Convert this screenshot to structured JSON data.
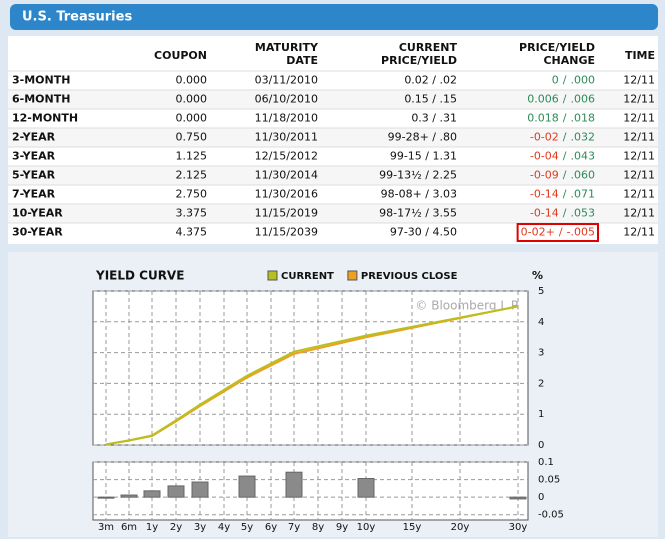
{
  "header": {
    "title": "U.S. Treasuries"
  },
  "table": {
    "columns": [
      [
        "COUPON"
      ],
      [
        "MATURITY",
        "DATE"
      ],
      [
        "CURRENT",
        "PRICE/YIELD"
      ],
      [
        "PRICE/YIELD",
        "CHANGE"
      ],
      [
        "TIME"
      ]
    ],
    "separator": "/",
    "rows": [
      {
        "name": "3-MONTH",
        "coupon": "0.000",
        "maturity": "03/11/2010",
        "current": "0.02 / .02",
        "price_change": "0",
        "yield_change": ".000",
        "price_change_color": "#2e8b57",
        "yield_change_color": "#2e8b57",
        "time": "12/11"
      },
      {
        "name": "6-MONTH",
        "coupon": "0.000",
        "maturity": "06/10/2010",
        "current": "0.15 / .15",
        "price_change": "0.006",
        "yield_change": ".006",
        "price_change_color": "#2e8b57",
        "yield_change_color": "#2e8b57",
        "time": "12/11"
      },
      {
        "name": "12-MONTH",
        "coupon": "0.000",
        "maturity": "11/18/2010",
        "current": "0.3 / .31",
        "price_change": "0.018",
        "yield_change": ".018",
        "price_change_color": "#2e8b57",
        "yield_change_color": "#2e8b57",
        "time": "12/11"
      },
      {
        "name": "2-YEAR",
        "coupon": "0.750",
        "maturity": "11/30/2011",
        "current": "99-28+ / .80",
        "price_change": "-0-02",
        "yield_change": ".032",
        "price_change_color": "#e03a1e",
        "yield_change_color": "#2e8b57",
        "time": "12/11"
      },
      {
        "name": "3-YEAR",
        "coupon": "1.125",
        "maturity": "12/15/2012",
        "current": "99-15 / 1.31",
        "price_change": "-0-04",
        "yield_change": ".043",
        "price_change_color": "#e03a1e",
        "yield_change_color": "#2e8b57",
        "time": "12/11"
      },
      {
        "name": "5-YEAR",
        "coupon": "2.125",
        "maturity": "11/30/2014",
        "current": "99-13½ / 2.25",
        "price_change": "-0-09",
        "yield_change": ".060",
        "price_change_color": "#e03a1e",
        "yield_change_color": "#2e8b57",
        "time": "12/11"
      },
      {
        "name": "7-YEAR",
        "coupon": "2.750",
        "maturity": "11/30/2016",
        "current": "98-08+ / 3.03",
        "price_change": "-0-14",
        "yield_change": ".071",
        "price_change_color": "#e03a1e",
        "yield_change_color": "#2e8b57",
        "time": "12/11"
      },
      {
        "name": "10-YEAR",
        "coupon": "3.375",
        "maturity": "11/15/2019",
        "current": "98-17½ / 3.55",
        "price_change": "-0-14",
        "yield_change": ".053",
        "price_change_color": "#e03a1e",
        "yield_change_color": "#2e8b57",
        "time": "12/11"
      },
      {
        "name": "30-YEAR",
        "coupon": "4.375",
        "maturity": "11/15/2039",
        "current": "97-30 / 4.50",
        "price_change": "0-02+",
        "yield_change": "-.005",
        "price_change_color": "#e03a1e",
        "yield_change_color": "#e03a1e",
        "time": "12/11",
        "highlight": true
      }
    ]
  },
  "chart_data": {
    "type": "line",
    "title": "YIELD CURVE",
    "y_unit_label": "%",
    "watermark": "© Bloomberg L.P.",
    "x": [
      0.25,
      0.5,
      1,
      2,
      3,
      5,
      7,
      10,
      30
    ],
    "xlim": [
      0.25,
      30
    ],
    "xticks": [
      {
        "value": 0.25,
        "label": "3m"
      },
      {
        "value": 0.5,
        "label": "6m"
      },
      {
        "value": 1,
        "label": "1y"
      },
      {
        "value": 2,
        "label": "2y"
      },
      {
        "value": 3,
        "label": "3y"
      },
      {
        "value": 4,
        "label": "4y"
      },
      {
        "value": 5,
        "label": "5y"
      },
      {
        "value": 6,
        "label": "6y"
      },
      {
        "value": 7,
        "label": "7y"
      },
      {
        "value": 8,
        "label": "8y"
      },
      {
        "value": 9,
        "label": "9y"
      },
      {
        "value": 10,
        "label": "10y"
      },
      {
        "value": 15,
        "label": "15y"
      },
      {
        "value": 20,
        "label": "20y"
      },
      {
        "value": 30,
        "label": "30y"
      }
    ],
    "ylim": [
      0,
      5
    ],
    "yticks": [
      0,
      1,
      2,
      3,
      4,
      5
    ],
    "grid": true,
    "series": [
      {
        "name": "PREVIOUS CLOSE",
        "color": "#f0a020",
        "values": [
          0.02,
          0.144,
          0.292,
          0.768,
          1.267,
          2.19,
          2.959,
          3.497,
          4.505
        ]
      },
      {
        "name": "CURRENT",
        "color": "#b8c020",
        "values": [
          0.02,
          0.15,
          0.31,
          0.8,
          1.31,
          2.25,
          3.03,
          3.55,
          4.5
        ]
      }
    ],
    "change_chart": {
      "type": "bar",
      "color": "#8a8a8a",
      "values": [
        0,
        0.006,
        0.018,
        0.032,
        0.043,
        0.06,
        0.071,
        0.053,
        -0.005
      ],
      "ylim": [
        -0.065,
        0.1
      ],
      "yticks": [
        0.1,
        0.05,
        0,
        -0.05
      ]
    }
  }
}
